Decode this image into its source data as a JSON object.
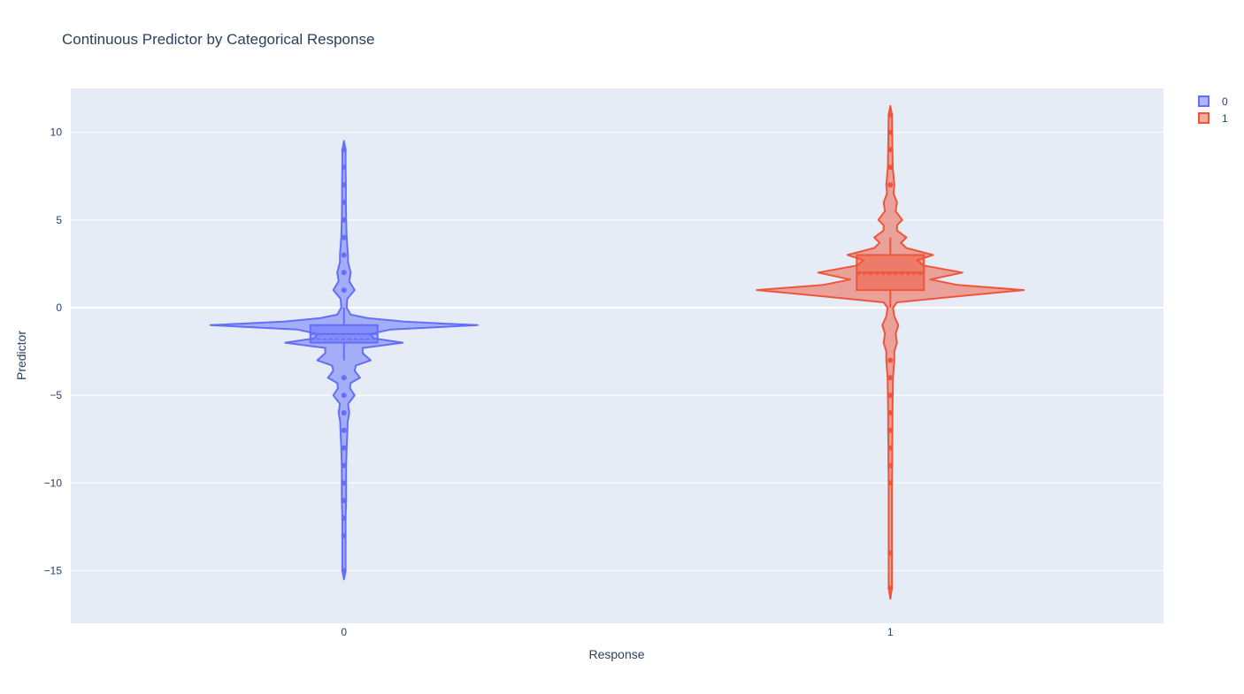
{
  "chart_data": {
    "type": "violin",
    "title": "Continuous Predictor by Categorical Response",
    "xlabel": "Response",
    "ylabel": "Predictor",
    "categories": [
      "0",
      "1"
    ],
    "ylim": [
      -18,
      12.5
    ],
    "yticks": [
      10,
      5,
      0,
      -5,
      -10,
      -15
    ],
    "ytick_labels": [
      "10",
      "5",
      "0",
      "−5",
      "−10",
      "−15"
    ],
    "grid": true,
    "legend_position": "top-right",
    "plot_background": "#e5ecf6",
    "series": [
      {
        "name": "0",
        "category": "0",
        "color": "#636efa",
        "density": [
          [
            -15.5,
            0.0
          ],
          [
            -15.0,
            0.012
          ],
          [
            -14.0,
            0.012
          ],
          [
            -13.0,
            0.012
          ],
          [
            -12.0,
            0.012
          ],
          [
            -11.0,
            0.016
          ],
          [
            -10.0,
            0.016
          ],
          [
            -9.0,
            0.016
          ],
          [
            -8.0,
            0.02
          ],
          [
            -7.2,
            0.025
          ],
          [
            -6.5,
            0.028
          ],
          [
            -6.0,
            0.04
          ],
          [
            -5.5,
            0.03
          ],
          [
            -5.0,
            0.08
          ],
          [
            -4.6,
            0.045
          ],
          [
            -4.3,
            0.05
          ],
          [
            -4.0,
            0.12
          ],
          [
            -3.6,
            0.08
          ],
          [
            -3.3,
            0.09
          ],
          [
            -3.0,
            0.2
          ],
          [
            -2.6,
            0.14
          ],
          [
            -2.3,
            0.14
          ],
          [
            -2.0,
            0.44
          ],
          [
            -1.75,
            0.22
          ],
          [
            -1.5,
            0.2
          ],
          [
            -1.25,
            0.35
          ],
          [
            -1.0,
            1.0
          ],
          [
            -0.8,
            0.45
          ],
          [
            -0.6,
            0.18
          ],
          [
            -0.4,
            0.05
          ],
          [
            0.0,
            0.02
          ],
          [
            0.5,
            0.025
          ],
          [
            1.0,
            0.08
          ],
          [
            1.5,
            0.04
          ],
          [
            2.0,
            0.05
          ],
          [
            2.6,
            0.03
          ],
          [
            3.0,
            0.03
          ],
          [
            4.0,
            0.02
          ],
          [
            5.0,
            0.016
          ],
          [
            6.0,
            0.014
          ],
          [
            7.0,
            0.014
          ],
          [
            8.0,
            0.012
          ],
          [
            9.0,
            0.012
          ],
          [
            9.5,
            0.0
          ]
        ],
        "points": [
          -15,
          -13,
          -12,
          -11,
          -10,
          -9,
          -8,
          -7,
          -6,
          -5,
          -4,
          1,
          2,
          3,
          4,
          5,
          6,
          7,
          8,
          9
        ],
        "box": {
          "q1": -2,
          "median": -1.5,
          "mean": -1.8,
          "q3": -1,
          "whisker_low": -3,
          "whisker_high": 0
        }
      },
      {
        "name": "1",
        "category": "1",
        "color": "#ef553b",
        "density": [
          [
            -16.6,
            0.0
          ],
          [
            -16.0,
            0.012
          ],
          [
            -14.0,
            0.012
          ],
          [
            -12.0,
            0.012
          ],
          [
            -10.0,
            0.012
          ],
          [
            -9.0,
            0.014
          ],
          [
            -8.0,
            0.014
          ],
          [
            -7.0,
            0.016
          ],
          [
            -6.0,
            0.016
          ],
          [
            -5.0,
            0.018
          ],
          [
            -4.0,
            0.02
          ],
          [
            -3.0,
            0.03
          ],
          [
            -2.5,
            0.03
          ],
          [
            -2.0,
            0.05
          ],
          [
            -1.5,
            0.04
          ],
          [
            -1.0,
            0.06
          ],
          [
            -0.5,
            0.03
          ],
          [
            0.0,
            0.02
          ],
          [
            0.3,
            0.05
          ],
          [
            0.6,
            0.45
          ],
          [
            1.0,
            1.0
          ],
          [
            1.3,
            0.5
          ],
          [
            1.6,
            0.3
          ],
          [
            2.0,
            0.54
          ],
          [
            2.4,
            0.25
          ],
          [
            2.7,
            0.2
          ],
          [
            3.0,
            0.32
          ],
          [
            3.4,
            0.12
          ],
          [
            3.7,
            0.08
          ],
          [
            4.0,
            0.12
          ],
          [
            4.4,
            0.05
          ],
          [
            4.7,
            0.05
          ],
          [
            5.0,
            0.09
          ],
          [
            5.5,
            0.04
          ],
          [
            6.0,
            0.05
          ],
          [
            6.5,
            0.025
          ],
          [
            7.0,
            0.03
          ],
          [
            8.0,
            0.018
          ],
          [
            9.0,
            0.016
          ],
          [
            10.0,
            0.014
          ],
          [
            11.0,
            0.012
          ],
          [
            11.5,
            0.0
          ]
        ],
        "points": [
          -16,
          -14,
          -10,
          -9,
          -8,
          -7,
          -6,
          -5,
          -4,
          -3,
          7,
          8,
          9,
          10,
          11
        ],
        "box": {
          "q1": 1,
          "median": 2,
          "mean": 1.9,
          "q3": 3,
          "whisker_low": 0,
          "whisker_high": 4
        }
      }
    ]
  }
}
